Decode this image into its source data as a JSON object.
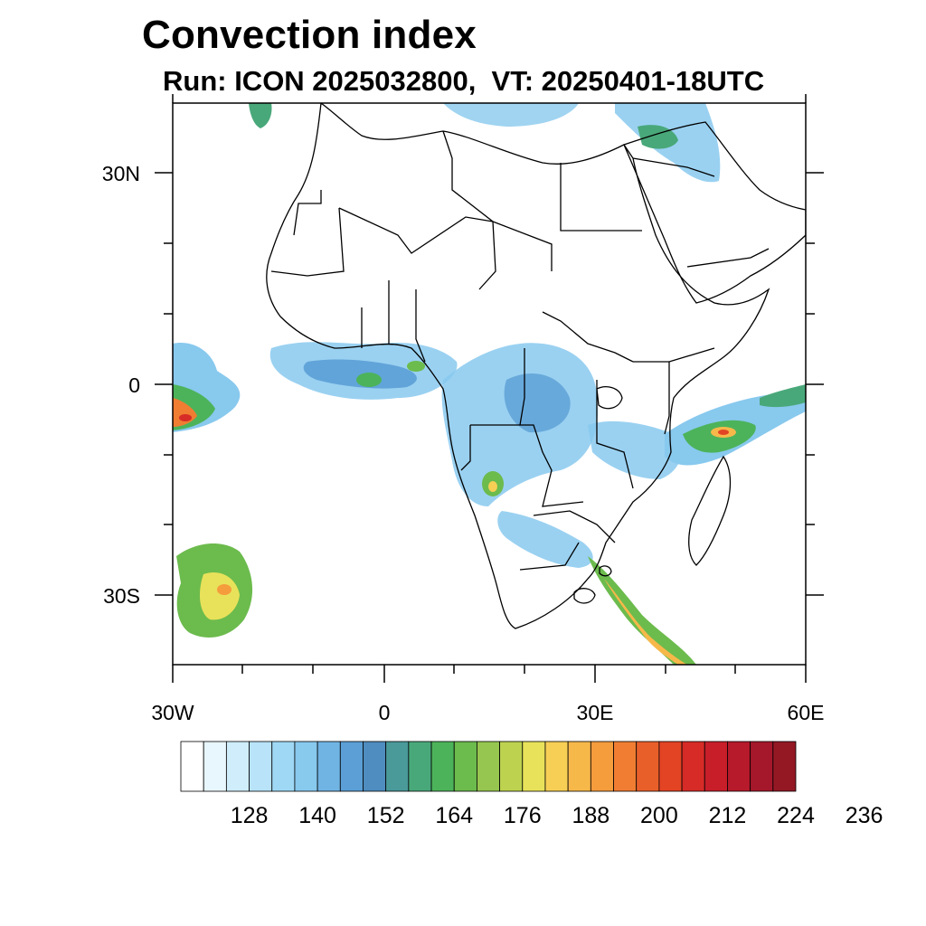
{
  "title": "Convection index",
  "subtitle": "Run: ICON 2025032800,  VT: 20250401-18UTC",
  "map": {
    "lon_range": [
      -30,
      60
    ],
    "lat_range": [
      -40,
      40
    ],
    "lat_labels": [
      {
        "text": "30N",
        "lat": 30
      },
      {
        "text": "0",
        "lat": 0
      },
      {
        "text": "30S",
        "lat": -30
      }
    ],
    "lon_labels": [
      {
        "text": "30W",
        "lon": -30
      },
      {
        "text": "0",
        "lon": 0
      },
      {
        "text": "30E",
        "lon": 30
      },
      {
        "text": "60E",
        "lon": 60
      }
    ]
  },
  "colorbar": {
    "colors": [
      "#ffffff",
      "#e8f6fd",
      "#cfedfb",
      "#b8e3f8",
      "#9fd8f5",
      "#88c9ee",
      "#70b4e4",
      "#5b9fd6",
      "#4f8cbf",
      "#4a9a9a",
      "#49a87a",
      "#4cb35a",
      "#6cbb4d",
      "#96c64f",
      "#bdd24f",
      "#e8e25a",
      "#f7cf55",
      "#f7b84a",
      "#f59c3d",
      "#f07d32",
      "#e95f2a",
      "#e24424",
      "#d62b27",
      "#c71e2a",
      "#b61a2b",
      "#a5172a",
      "#931824"
    ],
    "labels": [
      "128",
      "140",
      "152",
      "164",
      "176",
      "188",
      "200",
      "212",
      "224",
      "236"
    ]
  }
}
